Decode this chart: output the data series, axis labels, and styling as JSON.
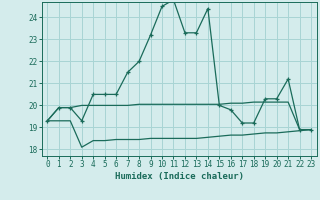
{
  "xlabel": "Humidex (Indice chaleur)",
  "background_color": "#d4ecec",
  "grid_color": "#a8d4d4",
  "line_color": "#1a6b5a",
  "xlim": [
    -0.5,
    23.5
  ],
  "ylim": [
    17.7,
    24.7
  ],
  "yticks": [
    18,
    19,
    20,
    21,
    22,
    23,
    24
  ],
  "xticks": [
    0,
    1,
    2,
    3,
    4,
    5,
    6,
    7,
    8,
    9,
    10,
    11,
    12,
    13,
    14,
    15,
    16,
    17,
    18,
    19,
    20,
    21,
    22,
    23
  ],
  "line1_x": [
    0,
    1,
    2,
    3,
    4,
    5,
    6,
    7,
    8,
    9,
    10,
    11,
    12,
    13,
    14,
    15,
    16,
    17,
    18,
    19,
    20,
    21,
    22,
    23
  ],
  "line1_y": [
    19.3,
    19.9,
    19.9,
    19.3,
    20.5,
    20.5,
    20.5,
    21.5,
    22.0,
    23.2,
    24.5,
    24.8,
    23.3,
    23.3,
    24.4,
    20.0,
    19.8,
    19.2,
    19.2,
    20.3,
    20.3,
    21.2,
    18.9,
    18.9
  ],
  "line2_x": [
    0,
    1,
    2,
    3,
    4,
    5,
    6,
    7,
    8,
    9,
    10,
    11,
    12,
    13,
    14,
    15,
    16,
    17,
    18,
    19,
    20,
    21,
    22,
    23
  ],
  "line2_y": [
    19.3,
    19.9,
    19.9,
    20.0,
    20.0,
    20.0,
    20.0,
    20.0,
    20.05,
    20.05,
    20.05,
    20.05,
    20.05,
    20.05,
    20.05,
    20.05,
    20.1,
    20.1,
    20.15,
    20.15,
    20.15,
    20.15,
    18.9,
    18.9
  ],
  "line3_x": [
    0,
    1,
    2,
    3,
    4,
    5,
    6,
    7,
    8,
    9,
    10,
    11,
    12,
    13,
    14,
    15,
    16,
    17,
    18,
    19,
    20,
    21,
    22,
    23
  ],
  "line3_y": [
    19.3,
    19.3,
    19.3,
    18.1,
    18.4,
    18.4,
    18.45,
    18.45,
    18.45,
    18.5,
    18.5,
    18.5,
    18.5,
    18.5,
    18.55,
    18.6,
    18.65,
    18.65,
    18.7,
    18.75,
    18.75,
    18.8,
    18.85,
    18.9
  ]
}
